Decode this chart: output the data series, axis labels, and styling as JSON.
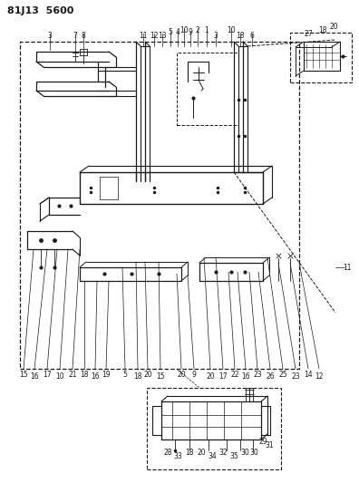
{
  "title": "81J13  5600",
  "bg_color": "#ffffff",
  "lc": "#1a1a1a",
  "fig_width": 3.96,
  "fig_height": 5.33,
  "dpi": 100,
  "top_labels": [
    [
      55,
      39,
      "3"
    ],
    [
      83,
      39,
      "7"
    ],
    [
      92,
      39,
      "8"
    ],
    [
      158,
      39,
      "11"
    ],
    [
      170,
      39,
      "12"
    ],
    [
      179,
      39,
      "13"
    ],
    [
      188,
      36,
      "5"
    ],
    [
      196,
      36,
      "4"
    ],
    [
      203,
      33,
      "10"
    ],
    [
      210,
      36,
      "9"
    ],
    [
      218,
      33,
      "2"
    ],
    [
      228,
      33,
      "1"
    ],
    [
      238,
      39,
      "3"
    ],
    [
      255,
      33,
      "10"
    ],
    [
      265,
      39,
      "18"
    ],
    [
      278,
      39,
      "6"
    ]
  ],
  "top_right_labels": [
    [
      340,
      37,
      "27"
    ],
    [
      356,
      33,
      "18"
    ],
    [
      368,
      30,
      "20"
    ]
  ],
  "bottom_labels": [
    [
      26,
      413,
      "15"
    ],
    [
      38,
      416,
      "16"
    ],
    [
      52,
      413,
      "17"
    ],
    [
      66,
      416,
      "10"
    ],
    [
      80,
      413,
      "21"
    ],
    [
      93,
      413,
      "18"
    ],
    [
      105,
      416,
      "16"
    ],
    [
      117,
      413,
      "19"
    ],
    [
      138,
      413,
      "5"
    ],
    [
      152,
      416,
      "18"
    ],
    [
      163,
      413,
      "20"
    ],
    [
      177,
      416,
      "15"
    ],
    [
      200,
      413,
      "20"
    ],
    [
      214,
      413,
      "9"
    ],
    [
      232,
      416,
      "20"
    ],
    [
      246,
      416,
      "17"
    ],
    [
      259,
      413,
      "22"
    ],
    [
      271,
      416,
      "16"
    ],
    [
      284,
      413,
      "23"
    ],
    [
      298,
      416,
      "26"
    ],
    [
      312,
      413,
      "25"
    ],
    [
      326,
      416,
      "23"
    ],
    [
      340,
      413,
      "14"
    ],
    [
      352,
      416,
      "12"
    ]
  ],
  "right_label": [
    383,
    295,
    "11"
  ],
  "inset_labels": [
    [
      185,
      499,
      "28"
    ],
    [
      196,
      503,
      "33"
    ],
    [
      209,
      499,
      "18"
    ],
    [
      222,
      499,
      "20"
    ],
    [
      234,
      503,
      "34"
    ],
    [
      246,
      499,
      "32"
    ],
    [
      258,
      503,
      "35"
    ],
    [
      270,
      499,
      "30"
    ],
    [
      280,
      499,
      "30"
    ],
    [
      290,
      487,
      "29"
    ],
    [
      297,
      491,
      "31"
    ]
  ]
}
